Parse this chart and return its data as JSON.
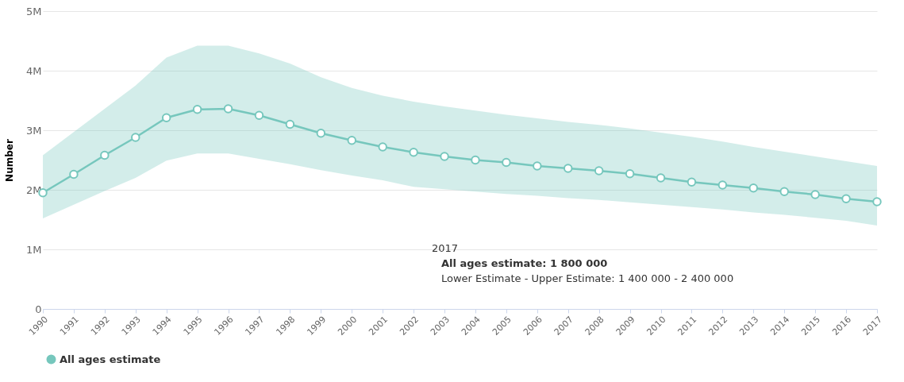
{
  "chart_data": {
    "type": "line",
    "ylabel": "Number",
    "categories": [
      "1990",
      "1991",
      "1992",
      "1993",
      "1994",
      "1995",
      "1996",
      "1997",
      "1998",
      "1999",
      "2000",
      "2001",
      "2002",
      "2003",
      "2004",
      "2005",
      "2006",
      "2007",
      "2008",
      "2009",
      "2010",
      "2011",
      "2012",
      "2013",
      "2014",
      "2015",
      "2016",
      "2017"
    ],
    "series": [
      {
        "name": "All ages estimate",
        "color": "#76c7bd",
        "values": [
          1950000,
          2260000,
          2580000,
          2880000,
          3210000,
          3350000,
          3360000,
          3250000,
          3100000,
          2950000,
          2830000,
          2720000,
          2630000,
          2560000,
          2500000,
          2460000,
          2400000,
          2360000,
          2320000,
          2270000,
          2200000,
          2130000,
          2080000,
          2030000,
          1970000,
          1920000,
          1850000,
          1800000
        ],
        "lower": [
          1520000,
          1750000,
          1980000,
          2200000,
          2490000,
          2610000,
          2610000,
          2520000,
          2430000,
          2330000,
          2240000,
          2160000,
          2050000,
          2010000,
          1970000,
          1930000,
          1900000,
          1860000,
          1830000,
          1790000,
          1750000,
          1710000,
          1670000,
          1620000,
          1580000,
          1530000,
          1480000,
          1400000
        ],
        "upper": [
          2580000,
          2970000,
          3360000,
          3750000,
          4220000,
          4420000,
          4420000,
          4290000,
          4120000,
          3890000,
          3710000,
          3580000,
          3480000,
          3400000,
          3330000,
          3260000,
          3200000,
          3140000,
          3090000,
          3030000,
          2960000,
          2890000,
          2810000,
          2720000,
          2640000,
          2560000,
          2480000,
          2400000
        ]
      }
    ],
    "ylim": [
      0,
      5000000
    ],
    "yticks": [
      {
        "value": 0,
        "label": "0"
      },
      {
        "value": 1000000,
        "label": "1M"
      },
      {
        "value": 2000000,
        "label": "2M"
      },
      {
        "value": 3000000,
        "label": "3M"
      },
      {
        "value": 4000000,
        "label": "4M"
      },
      {
        "value": 5000000,
        "label": "5M"
      }
    ],
    "grid": "y",
    "legend": "bottom",
    "marker": "circle",
    "line_style": "solid",
    "annotations": [
      "2017",
      "All ages estimate: 1 800 000",
      "Lower Estimate - Upper Estimate: 1 400 000 - 2 400 000"
    ]
  }
}
